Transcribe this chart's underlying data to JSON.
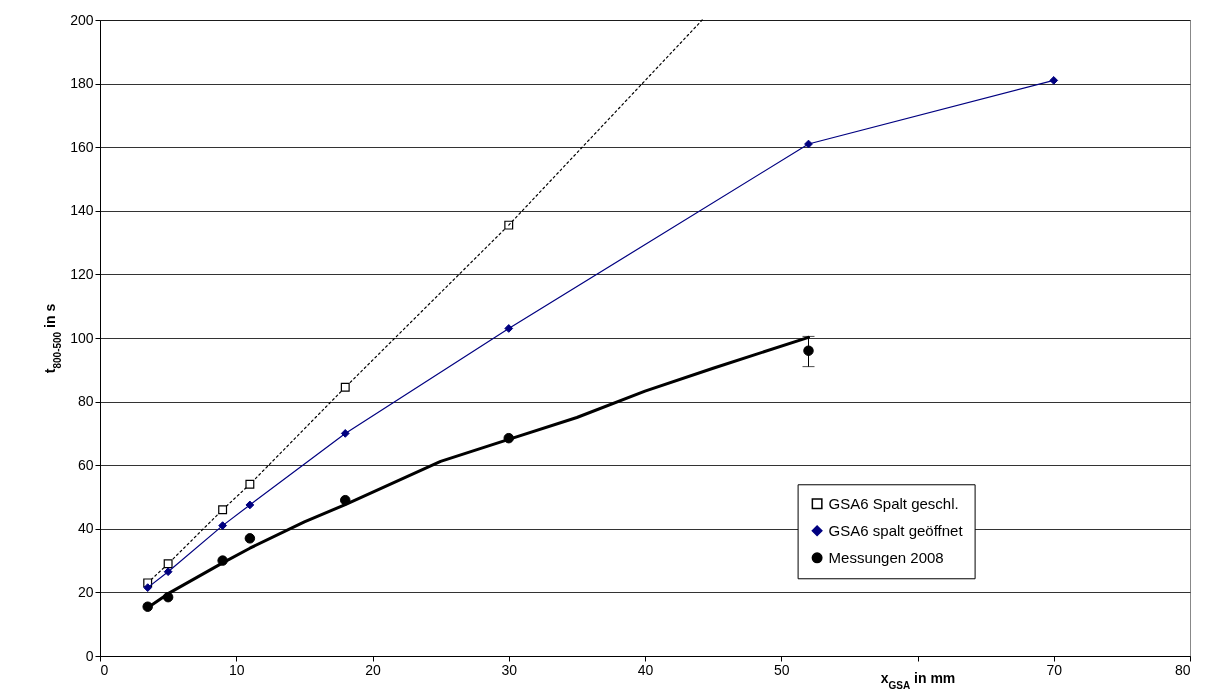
{
  "chart_data": {
    "type": "line",
    "xlabel": "x$_{GSA}$ in mm",
    "ylabel": "t$_{800-500}$ in s",
    "xlim": [
      0,
      80
    ],
    "xticks": [
      0,
      10,
      20,
      30,
      40,
      50,
      {
        "value": 60,
        "label": null
      },
      70,
      80
    ],
    "ylim": [
      0,
      200
    ],
    "yticks": [
      0,
      20,
      40,
      60,
      80,
      100,
      120,
      140,
      160,
      180,
      200
    ],
    "grid": "y",
    "legend": "bottom right",
    "series": [
      {
        "name": "GSA6 Spalt geschl.",
        "color": "#000000",
        "marker": "square",
        "line_style": "dotted",
        "x": [
          3.5,
          5,
          9,
          11,
          18,
          30
        ],
        "values": [
          23,
          29,
          46,
          54,
          84.5,
          135.5
        ]
      },
      {
        "color": "#000000",
        "marker": "none",
        "line_style": "dotted",
        "x": [
          30,
          44.2
        ],
        "values": [
          135.5,
          200
        ]
      },
      {
        "name": "GSA6 spalt geöffnet",
        "color": "#000080",
        "marker": "diamond",
        "line_style": "solid",
        "x": [
          3.5,
          5,
          9,
          11,
          18,
          30,
          52,
          70
        ],
        "values": [
          21.5,
          26.5,
          41,
          47.5,
          70,
          103,
          161,
          181
        ]
      },
      {
        "color": "#000000",
        "marker": "none",
        "line_style": "solid",
        "x": [
          3.5,
          5,
          9,
          11,
          15,
          18,
          25,
          30,
          35,
          40,
          45,
          52
        ],
        "values": [
          15.2,
          19.6,
          29.3,
          33.9,
          42.2,
          47.6,
          61.2,
          68.1,
          75,
          83.3,
          90.5,
          100.2
        ]
      },
      {
        "name": "Messungen 2008",
        "type": "scatter",
        "color": "#000000",
        "marker": "circle",
        "x": [
          3.5,
          5,
          9,
          11,
          18,
          30,
          52
        ],
        "values": [
          15.5,
          18.5,
          30,
          37,
          49,
          68.5,
          96
        ],
        "errors": [
          null,
          null,
          null,
          null,
          null,
          null,
          [
            91,
            100.5
          ]
        ]
      }
    ]
  }
}
